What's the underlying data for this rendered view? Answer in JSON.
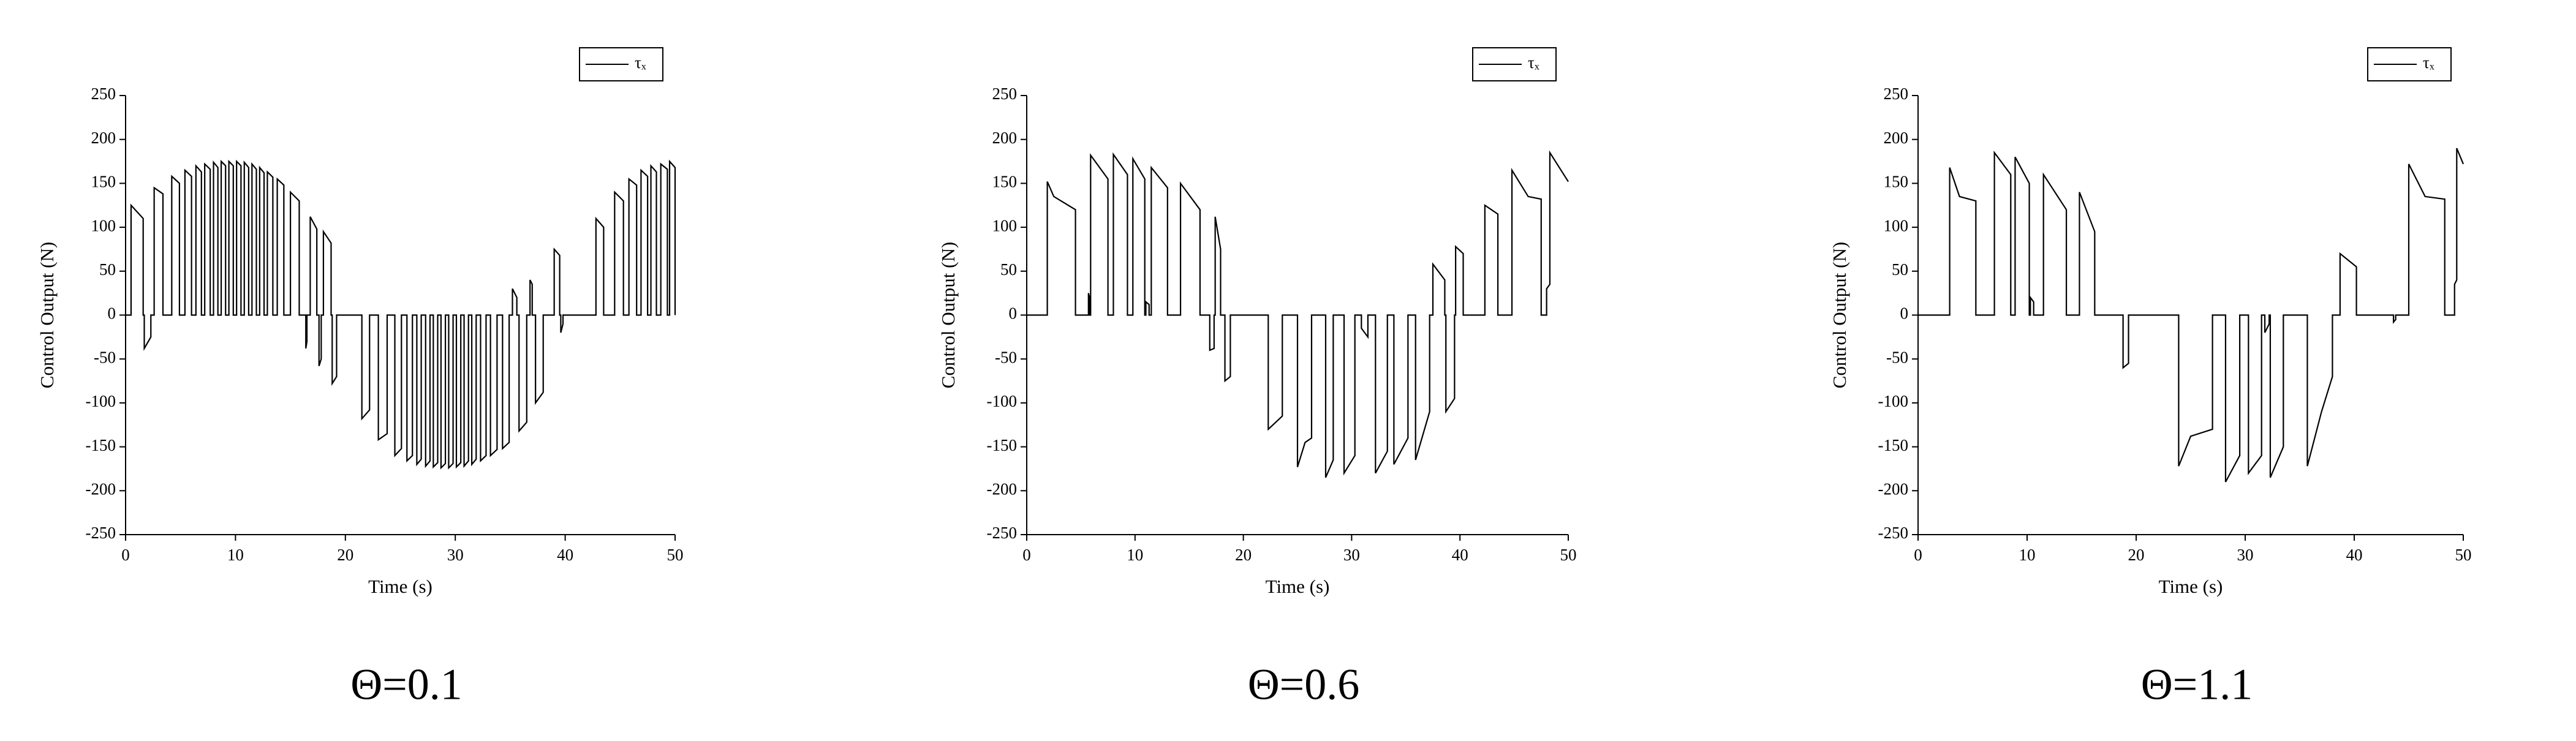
{
  "chart_data": [
    {
      "type": "line",
      "caption": "Θ=0.1",
      "x_label": "Time (s)",
      "y_label": "Control Output (N)",
      "legend": "top-right",
      "xlim": [
        0,
        50
      ],
      "ylim": [
        -250,
        250
      ],
      "xticks": [
        0,
        10,
        20,
        30,
        40,
        50
      ],
      "yticks": [
        -250,
        -200,
        -150,
        -100,
        -50,
        0,
        50,
        100,
        150,
        200,
        250
      ],
      "x": [
        0,
        0.5,
        0.5,
        1.6,
        1.6,
        1.7,
        1.7,
        2.3,
        2.3,
        2.6,
        2.6,
        3.4,
        3.4,
        4.2,
        4.2,
        4.9,
        4.9,
        5.4,
        5.4,
        6.0,
        6.0,
        6.4,
        6.4,
        6.9,
        6.9,
        7.2,
        7.2,
        7.7,
        7.7,
        8.0,
        8.0,
        8.4,
        8.4,
        8.7,
        8.7,
        9.1,
        9.1,
        9.4,
        9.4,
        9.8,
        9.8,
        10.1,
        10.1,
        10.5,
        10.5,
        10.8,
        10.8,
        11.2,
        11.2,
        11.5,
        11.5,
        11.9,
        11.9,
        12.2,
        12.2,
        12.6,
        12.6,
        12.9,
        12.9,
        13.4,
        13.4,
        13.8,
        13.8,
        14.4,
        14.4,
        15.0,
        15.0,
        15.8,
        15.8,
        16.4,
        16.4,
        16.5,
        16.5,
        16.8,
        16.8,
        17.4,
        17.4,
        17.6,
        17.6,
        17.8,
        17.8,
        18.0,
        18.0,
        18.7,
        18.7,
        18.8,
        18.8,
        19.2,
        19.2,
        21.5,
        21.5,
        22.2,
        22.2,
        23.0,
        23.0,
        23.8,
        23.8,
        24.5,
        24.5,
        25.1,
        25.1,
        25.6,
        25.6,
        26.1,
        26.1,
        26.5,
        26.5,
        26.9,
        26.9,
        27.3,
        27.3,
        27.7,
        27.7,
        28.0,
        28.0,
        28.4,
        28.4,
        28.7,
        28.7,
        29.1,
        29.1,
        29.4,
        29.4,
        29.8,
        29.8,
        30.1,
        30.1,
        30.5,
        30.5,
        30.8,
        30.8,
        31.2,
        31.2,
        31.5,
        31.5,
        31.9,
        31.9,
        32.3,
        32.3,
        32.8,
        32.8,
        33.2,
        33.2,
        33.8,
        33.8,
        34.3,
        34.3,
        34.9,
        34.9,
        35.2,
        35.2,
        35.6,
        35.6,
        35.8,
        35.8,
        36.5,
        36.5,
        36.8,
        36.8,
        37.0,
        37.0,
        37.3,
        37.3,
        38.0,
        38.0,
        39.0,
        39.0,
        39.5,
        39.5,
        39.6,
        39.6,
        39.8,
        39.8,
        42.8,
        42.8,
        43.5,
        43.5,
        44.5,
        44.5,
        45.3,
        45.3,
        45.8,
        45.8,
        46.5,
        46.5,
        46.9,
        46.9,
        47.5,
        47.5,
        47.8,
        47.8,
        48.3,
        48.3,
        48.7,
        48.7,
        49.3,
        49.3,
        49.5,
        49.5,
        50,
        50
      ],
      "series": [
        {
          "name": "τₓ",
          "color": "#000000",
          "values": [
            0,
            0,
            125,
            110,
            0,
            0,
            -38,
            -25,
            0,
            0,
            145,
            138,
            0,
            0,
            158,
            150,
            0,
            0,
            165,
            158,
            0,
            0,
            170,
            163,
            0,
            0,
            172,
            166,
            0,
            0,
            174,
            168,
            0,
            0,
            175,
            170,
            0,
            0,
            175,
            170,
            0,
            0,
            175,
            170,
            0,
            0,
            174,
            168,
            0,
            0,
            172,
            166,
            0,
            0,
            168,
            162,
            0,
            0,
            163,
            157,
            0,
            0,
            155,
            148,
            0,
            0,
            140,
            130,
            0,
            0,
            -38,
            -30,
            0,
            0,
            112,
            98,
            0,
            0,
            -58,
            -50,
            0,
            0,
            95,
            82,
            0,
            0,
            -78,
            -70,
            0,
            0,
            -118,
            -108,
            0,
            0,
            -142,
            -135,
            0,
            0,
            -160,
            -152,
            0,
            0,
            -166,
            -160,
            0,
            0,
            -170,
            -164,
            0,
            0,
            -172,
            -166,
            0,
            0,
            -173,
            -168,
            0,
            0,
            -174,
            -169,
            0,
            0,
            -174,
            -169,
            0,
            0,
            -173,
            -168,
            0,
            0,
            -172,
            -166,
            0,
            0,
            -170,
            -164,
            0,
            0,
            -166,
            -160,
            0,
            0,
            -160,
            -153,
            0,
            0,
            -152,
            -145,
            0,
            0,
            30,
            20,
            0,
            0,
            -132,
            -122,
            0,
            0,
            40,
            35,
            0,
            0,
            -100,
            -88,
            0,
            0,
            75,
            68,
            0,
            0,
            -20,
            -10,
            0,
            0,
            110,
            100,
            0,
            0,
            140,
            130,
            0,
            0,
            155,
            148,
            0,
            0,
            165,
            158,
            0,
            0,
            170,
            163,
            0,
            0,
            172,
            166,
            0,
            0,
            175,
            168,
            0
          ]
        }
      ]
    },
    {
      "type": "line",
      "caption": "Θ=0.6",
      "x_label": "Time (s)",
      "y_label": "Control Output (N)",
      "legend": "top-right",
      "xlim": [
        0,
        50
      ],
      "ylim": [
        -250,
        250
      ],
      "xticks": [
        0,
        10,
        20,
        30,
        40,
        50
      ],
      "yticks": [
        -250,
        -200,
        -150,
        -100,
        -50,
        0,
        50,
        100,
        150,
        200,
        250
      ],
      "x": [
        0,
        1.9,
        1.9,
        2.5,
        4.5,
        4.5,
        5.7,
        5.7,
        5.8,
        5.8,
        5.9,
        5.9,
        7.5,
        7.5,
        8.0,
        8.0,
        9.3,
        9.3,
        9.8,
        9.8,
        10.9,
        10.9,
        11.0,
        11.0,
        11.3,
        11.3,
        11.5,
        11.5,
        13.0,
        13.0,
        14.2,
        14.2,
        16.0,
        16.0,
        16.9,
        16.9,
        17.3,
        17.3,
        17.4,
        17.4,
        17.9,
        17.9,
        18.3,
        18.3,
        18.8,
        18.8,
        22.3,
        22.3,
        23.6,
        23.6,
        25.0,
        25.0,
        25.7,
        26.3,
        26.3,
        27.6,
        27.6,
        28.3,
        28.3,
        29.3,
        29.3,
        30.3,
        30.3,
        30.9,
        30.9,
        31.5,
        31.5,
        32.2,
        32.2,
        33.3,
        33.3,
        33.9,
        33.9,
        35.2,
        35.2,
        35.9,
        35.9,
        37.2,
        37.2,
        37.5,
        37.5,
        38.6,
        38.6,
        38.7,
        38.7,
        39.5,
        39.5,
        39.6,
        39.6,
        40.3,
        40.3,
        42.3,
        42.3,
        43.5,
        43.5,
        44.8,
        44.8,
        46.3,
        47.5,
        47.5,
        48.0,
        48.0,
        48.3,
        48.3,
        50
      ],
      "series": [
        {
          "name": "τₓ",
          "color": "#000000",
          "values": [
            0,
            0,
            152,
            135,
            120,
            0,
            0,
            25,
            20,
            0,
            0,
            182,
            155,
            0,
            0,
            183,
            160,
            0,
            0,
            178,
            155,
            0,
            0,
            15,
            12,
            0,
            0,
            168,
            145,
            0,
            0,
            150,
            120,
            0,
            0,
            -40,
            -38,
            0,
            0,
            112,
            75,
            0,
            0,
            -75,
            -70,
            0,
            0,
            -130,
            -115,
            0,
            0,
            -173,
            -145,
            -140,
            0,
            0,
            -185,
            -165,
            0,
            0,
            -180,
            -160,
            0,
            0,
            -15,
            -25,
            0,
            0,
            -180,
            -155,
            0,
            0,
            -170,
            -140,
            0,
            0,
            -165,
            -110,
            0,
            0,
            58,
            40,
            0,
            0,
            -110,
            -95,
            0,
            0,
            78,
            70,
            0,
            0,
            125,
            115,
            0,
            0,
            165,
            135,
            132,
            0,
            0,
            30,
            35,
            185,
            152
          ]
        }
      ]
    },
    {
      "type": "line",
      "caption": "Θ=1.1",
      "x_label": "Time (s)",
      "y_label": "Control Output (N)",
      "legend": "top-right",
      "xlim": [
        0,
        50
      ],
      "ylim": [
        -250,
        250
      ],
      "xticks": [
        0,
        10,
        20,
        30,
        40,
        50
      ],
      "yticks": [
        -250,
        -200,
        -150,
        -100,
        -50,
        0,
        50,
        100,
        150,
        200,
        250
      ],
      "x": [
        0,
        2.9,
        2.9,
        3.8,
        5.3,
        5.3,
        7.0,
        7.0,
        8.5,
        8.5,
        8.9,
        8.9,
        10.2,
        10.2,
        10.3,
        10.3,
        10.6,
        10.6,
        11.5,
        11.5,
        13.6,
        13.6,
        14.8,
        14.8,
        16.2,
        16.2,
        18.8,
        18.8,
        19.3,
        19.3,
        23.9,
        23.9,
        25.0,
        27.0,
        27.0,
        28.2,
        28.2,
        29.5,
        29.5,
        30.3,
        30.3,
        31.5,
        31.5,
        31.8,
        31.8,
        32.2,
        32.2,
        32.3,
        32.3,
        33.5,
        33.5,
        35.7,
        35.7,
        37.0,
        38.0,
        38.0,
        38.7,
        38.7,
        40.2,
        40.2,
        43.6,
        43.6,
        43.8,
        43.8,
        45.0,
        45.0,
        46.5,
        48.3,
        48.3,
        49.2,
        49.2,
        49.4,
        49.4,
        50
      ],
      "series": [
        {
          "name": "τₓ",
          "color": "#000000",
          "values": [
            0,
            0,
            168,
            135,
            130,
            0,
            0,
            185,
            160,
            0,
            0,
            180,
            150,
            0,
            0,
            20,
            15,
            0,
            0,
            160,
            120,
            0,
            0,
            140,
            95,
            0,
            0,
            -60,
            -55,
            0,
            0,
            -172,
            -138,
            -130,
            0,
            0,
            -190,
            -160,
            0,
            0,
            -180,
            -160,
            0,
            0,
            -20,
            -10,
            0,
            0,
            -185,
            -150,
            0,
            0,
            -172,
            -110,
            -70,
            0,
            0,
            70,
            55,
            0,
            0,
            -8,
            -5,
            0,
            0,
            172,
            135,
            132,
            0,
            0,
            35,
            40,
            190,
            172
          ]
        }
      ]
    }
  ]
}
